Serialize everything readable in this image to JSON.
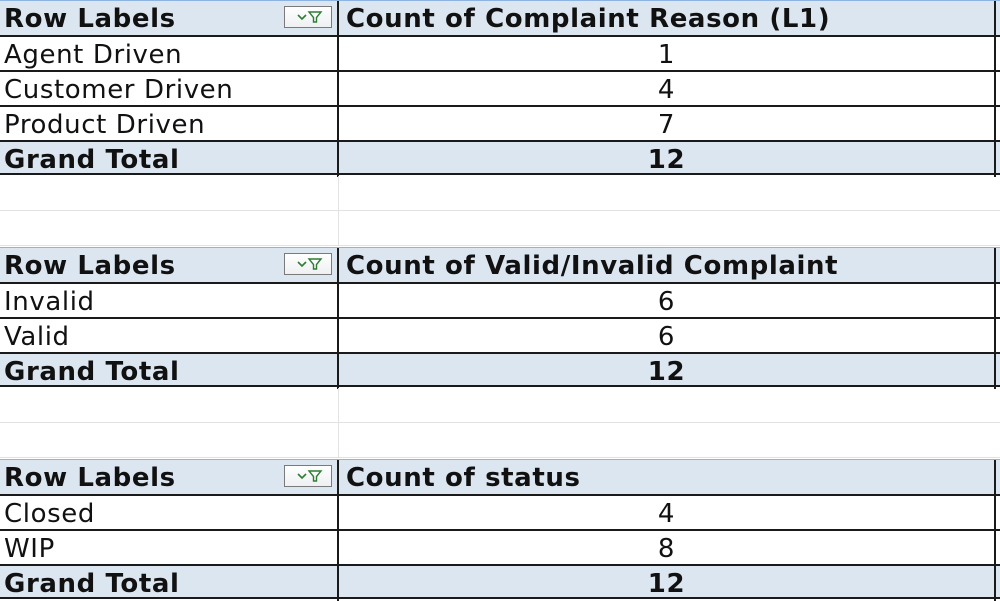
{
  "pivot_tables": [
    {
      "header": {
        "row_labels": "Row Labels",
        "value_header": "Count of Complaint Reason (L1)",
        "filter_icon": "filter-dropdown-icon"
      },
      "rows": [
        {
          "label": "Agent Driven",
          "value": "1"
        },
        {
          "label": "Customer Driven",
          "value": "4"
        },
        {
          "label": "Product Driven",
          "value": "7"
        }
      ],
      "total": {
        "label": "Grand Total",
        "value": "12"
      }
    },
    {
      "header": {
        "row_labels": "Row Labels",
        "value_header": "Count of Valid/Invalid Complaint",
        "filter_icon": "filter-dropdown-icon"
      },
      "rows": [
        {
          "label": "Invalid",
          "value": "6"
        },
        {
          "label": "Valid",
          "value": "6"
        }
      ],
      "total": {
        "label": "Grand Total",
        "value": "12"
      }
    },
    {
      "header": {
        "row_labels": "Row Labels",
        "value_header": " Count of status",
        "filter_icon": "filter-dropdown-icon"
      },
      "rows": [
        {
          "label": "Closed",
          "value": "4"
        },
        {
          "label": "WIP",
          "value": "8"
        }
      ],
      "total": {
        "label": "Grand Total",
        "value": "12"
      }
    }
  ],
  "colors": {
    "header_fill": "#dce6f1",
    "border": "#1a1a1a",
    "gridline": "#e2e2e2"
  }
}
